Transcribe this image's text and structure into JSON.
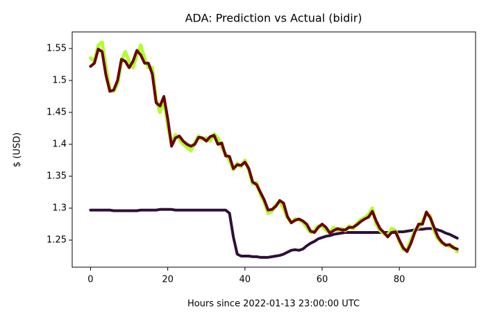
{
  "chart_data": {
    "type": "line",
    "title": "ADA: Prediction vs Actual (bidir)",
    "x_label": "Hours since 2022-01-13 23:00:00 UTC",
    "y_label": "$ (USD)",
    "x": [
      0,
      1,
      2,
      3,
      4,
      5,
      6,
      7,
      8,
      9,
      10,
      11,
      12,
      13,
      14,
      15,
      16,
      17,
      18,
      19,
      20,
      21,
      22,
      23,
      24,
      25,
      26,
      27,
      28,
      29,
      30,
      31,
      32,
      33,
      34,
      35,
      36,
      37,
      38,
      39,
      40,
      41,
      42,
      43,
      44,
      45,
      46,
      47,
      48,
      49,
      50,
      51,
      52,
      53,
      54,
      55,
      56,
      57,
      58,
      59,
      60,
      61,
      62,
      63,
      64,
      65,
      66,
      67,
      68,
      69,
      70,
      71,
      72,
      73,
      74,
      75,
      76,
      77,
      78,
      79,
      80,
      81,
      82,
      83,
      84,
      85,
      86,
      87,
      88,
      89,
      90,
      91,
      92,
      93,
      94,
      95
    ],
    "series": [
      {
        "color": "#2e0f3b",
        "width": 4,
        "values": [
          1.297,
          1.297,
          1.297,
          1.297,
          1.297,
          1.297,
          1.296,
          1.296,
          1.296,
          1.296,
          1.296,
          1.296,
          1.296,
          1.297,
          1.297,
          1.297,
          1.297,
          1.297,
          1.298,
          1.298,
          1.298,
          1.298,
          1.297,
          1.297,
          1.297,
          1.297,
          1.297,
          1.297,
          1.297,
          1.297,
          1.297,
          1.297,
          1.297,
          1.297,
          1.297,
          1.297,
          1.292,
          1.255,
          1.228,
          1.225,
          1.225,
          1.225,
          1.224,
          1.224,
          1.223,
          1.223,
          1.223,
          1.224,
          1.225,
          1.226,
          1.228,
          1.231,
          1.234,
          1.235,
          1.234,
          1.236,
          1.241,
          1.245,
          1.248,
          1.252,
          1.254,
          1.256,
          1.257,
          1.259,
          1.26,
          1.261,
          1.262,
          1.262,
          1.262,
          1.262,
          1.262,
          1.262,
          1.262,
          1.262,
          1.262,
          1.262,
          1.262,
          1.262,
          1.262,
          1.262,
          1.263,
          1.263,
          1.264,
          1.265,
          1.266,
          1.267,
          1.267,
          1.268,
          1.268,
          1.268,
          1.266,
          1.264,
          1.261,
          1.259,
          1.256,
          1.253
        ]
      },
      {
        "color": "#adff2f",
        "width": 5,
        "values": [
          1.535,
          1.53,
          1.555,
          1.56,
          1.52,
          1.485,
          1.483,
          1.495,
          1.53,
          1.545,
          1.53,
          1.52,
          1.54,
          1.555,
          1.535,
          1.52,
          1.52,
          1.47,
          1.45,
          1.47,
          1.43,
          1.4,
          1.415,
          1.408,
          1.4,
          1.395,
          1.39,
          1.402,
          1.413,
          1.408,
          1.41,
          1.405,
          1.416,
          1.41,
          1.395,
          1.385,
          1.375,
          1.36,
          1.37,
          1.365,
          1.375,
          1.36,
          1.338,
          1.34,
          1.322,
          1.31,
          1.292,
          1.295,
          1.305,
          1.31,
          1.3,
          1.285,
          1.278,
          1.283,
          1.282,
          1.278,
          1.27,
          1.262,
          1.265,
          1.272,
          1.272,
          1.265,
          1.262,
          1.27,
          1.265,
          1.268,
          1.265,
          1.272,
          1.268,
          1.276,
          1.282,
          1.285,
          1.29,
          1.3,
          1.275,
          1.265,
          1.26,
          1.258,
          1.268,
          1.265,
          1.248,
          1.235,
          1.235,
          1.25,
          1.265,
          1.27,
          1.28,
          1.29,
          1.288,
          1.265,
          1.252,
          1.245,
          1.243,
          1.24,
          1.24,
          1.232
        ]
      },
      {
        "color": "#6b0000",
        "width": 4,
        "values": [
          1.522,
          1.527,
          1.549,
          1.545,
          1.508,
          1.483,
          1.485,
          1.5,
          1.533,
          1.53,
          1.52,
          1.53,
          1.547,
          1.54,
          1.527,
          1.527,
          1.51,
          1.465,
          1.46,
          1.475,
          1.44,
          1.397,
          1.41,
          1.413,
          1.405,
          1.4,
          1.397,
          1.4,
          1.411,
          1.41,
          1.405,
          1.412,
          1.414,
          1.4,
          1.402,
          1.382,
          1.381,
          1.362,
          1.368,
          1.367,
          1.372,
          1.362,
          1.341,
          1.337,
          1.325,
          1.313,
          1.297,
          1.298,
          1.303,
          1.312,
          1.308,
          1.287,
          1.277,
          1.281,
          1.283,
          1.28,
          1.275,
          1.264,
          1.262,
          1.27,
          1.275,
          1.27,
          1.261,
          1.265,
          1.268,
          1.266,
          1.266,
          1.27,
          1.27,
          1.274,
          1.279,
          1.283,
          1.286,
          1.295,
          1.28,
          1.268,
          1.262,
          1.255,
          1.262,
          1.263,
          1.25,
          1.238,
          1.232,
          1.245,
          1.262,
          1.275,
          1.275,
          1.294,
          1.285,
          1.27,
          1.255,
          1.247,
          1.242,
          1.243,
          1.238,
          1.236
        ]
      }
    ],
    "xlim": [
      -4.75,
      99.75
    ],
    "xticks": [
      0,
      20,
      40,
      60,
      80
    ],
    "ylim": [
      1.2076,
      1.576
    ],
    "yticks": [
      1.25,
      1.3,
      1.35,
      1.4,
      1.45,
      1.5,
      1.55
    ]
  }
}
